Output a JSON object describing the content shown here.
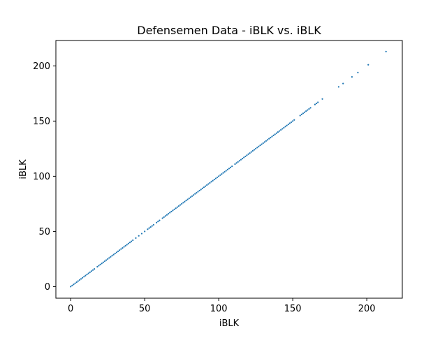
{
  "chart_data": {
    "type": "scatter",
    "title": "Defensemen Data - iBLK vs. iBLK",
    "xlabel": "iBLK",
    "ylabel": "iBLK",
    "xlim": [
      -10,
      224
    ],
    "ylim": [
      -10.5,
      223
    ],
    "xticks": [
      0,
      50,
      100,
      150,
      200
    ],
    "yticks": [
      0,
      50,
      100,
      150,
      200
    ],
    "grid": false,
    "point_color": "#1f77b4",
    "points": [
      [
        0,
        0
      ],
      [
        1,
        1
      ],
      [
        2,
        2
      ],
      [
        3,
        3
      ],
      [
        4,
        4
      ],
      [
        5,
        5
      ],
      [
        6,
        6
      ],
      [
        7,
        7
      ],
      [
        8,
        8
      ],
      [
        9,
        9
      ],
      [
        10,
        10
      ],
      [
        11,
        11
      ],
      [
        12,
        12
      ],
      [
        13,
        13
      ],
      [
        14,
        14
      ],
      [
        15,
        15
      ],
      [
        16,
        16
      ],
      [
        18,
        18
      ],
      [
        19,
        19
      ],
      [
        20,
        20
      ],
      [
        21,
        21
      ],
      [
        22,
        22
      ],
      [
        23,
        23
      ],
      [
        24,
        24
      ],
      [
        25,
        25
      ],
      [
        26,
        26
      ],
      [
        27,
        27
      ],
      [
        28,
        28
      ],
      [
        29,
        29
      ],
      [
        30,
        30
      ],
      [
        31,
        31
      ],
      [
        32,
        32
      ],
      [
        33,
        33
      ],
      [
        34,
        34
      ],
      [
        35,
        35
      ],
      [
        36,
        36
      ],
      [
        37,
        37
      ],
      [
        38,
        38
      ],
      [
        39,
        39
      ],
      [
        40,
        40
      ],
      [
        41,
        41
      ],
      [
        42,
        42
      ],
      [
        44,
        44
      ],
      [
        46,
        46
      ],
      [
        48,
        48
      ],
      [
        50,
        50
      ],
      [
        52,
        52
      ],
      [
        53,
        53
      ],
      [
        54,
        54
      ],
      [
        55,
        55
      ],
      [
        56,
        56
      ],
      [
        58,
        58
      ],
      [
        59,
        59
      ],
      [
        60,
        60
      ],
      [
        62,
        62
      ],
      [
        63,
        63
      ],
      [
        64,
        64
      ],
      [
        65,
        65
      ],
      [
        66,
        66
      ],
      [
        67,
        67
      ],
      [
        68,
        68
      ],
      [
        69,
        69
      ],
      [
        70,
        70
      ],
      [
        71,
        71
      ],
      [
        72,
        72
      ],
      [
        73,
        73
      ],
      [
        74,
        74
      ],
      [
        75,
        75
      ],
      [
        76,
        76
      ],
      [
        77,
        77
      ],
      [
        78,
        78
      ],
      [
        79,
        79
      ],
      [
        80,
        80
      ],
      [
        81,
        81
      ],
      [
        82,
        82
      ],
      [
        83,
        83
      ],
      [
        84,
        84
      ],
      [
        85,
        85
      ],
      [
        86,
        86
      ],
      [
        87,
        87
      ],
      [
        88,
        88
      ],
      [
        89,
        89
      ],
      [
        90,
        90
      ],
      [
        91,
        91
      ],
      [
        92,
        92
      ],
      [
        93,
        93
      ],
      [
        94,
        94
      ],
      [
        95,
        95
      ],
      [
        96,
        96
      ],
      [
        97,
        97
      ],
      [
        98,
        98
      ],
      [
        99,
        99
      ],
      [
        100,
        100
      ],
      [
        101,
        101
      ],
      [
        102,
        102
      ],
      [
        103,
        103
      ],
      [
        104,
        104
      ],
      [
        105,
        105
      ],
      [
        106,
        106
      ],
      [
        107,
        107
      ],
      [
        108,
        108
      ],
      [
        109,
        109
      ],
      [
        111,
        111
      ],
      [
        112,
        112
      ],
      [
        113,
        113
      ],
      [
        114,
        114
      ],
      [
        115,
        115
      ],
      [
        116,
        116
      ],
      [
        117,
        117
      ],
      [
        118,
        118
      ],
      [
        119,
        119
      ],
      [
        120,
        120
      ],
      [
        121,
        121
      ],
      [
        122,
        122
      ],
      [
        123,
        123
      ],
      [
        124,
        124
      ],
      [
        125,
        125
      ],
      [
        126,
        126
      ],
      [
        127,
        127
      ],
      [
        128,
        128
      ],
      [
        129,
        129
      ],
      [
        130,
        130
      ],
      [
        131,
        131
      ],
      [
        132,
        132
      ],
      [
        133,
        133
      ],
      [
        134,
        134
      ],
      [
        135,
        135
      ],
      [
        136,
        136
      ],
      [
        137,
        137
      ],
      [
        138,
        138
      ],
      [
        139,
        139
      ],
      [
        140,
        140
      ],
      [
        141,
        141
      ],
      [
        142,
        142
      ],
      [
        143,
        143
      ],
      [
        144,
        144
      ],
      [
        145,
        145
      ],
      [
        146,
        146
      ],
      [
        147,
        147
      ],
      [
        148,
        148
      ],
      [
        149,
        149
      ],
      [
        150,
        150
      ],
      [
        151,
        151
      ],
      [
        155,
        155
      ],
      [
        156,
        156
      ],
      [
        157,
        157
      ],
      [
        158,
        158
      ],
      [
        159,
        159
      ],
      [
        160,
        160
      ],
      [
        161,
        161
      ],
      [
        162,
        162
      ],
      [
        165,
        165
      ],
      [
        166,
        166
      ],
      [
        167,
        167
      ],
      [
        170,
        170
      ],
      [
        181,
        181
      ],
      [
        184,
        184
      ],
      [
        190,
        190
      ],
      [
        194,
        194
      ],
      [
        201,
        201
      ],
      [
        213,
        213
      ]
    ]
  }
}
